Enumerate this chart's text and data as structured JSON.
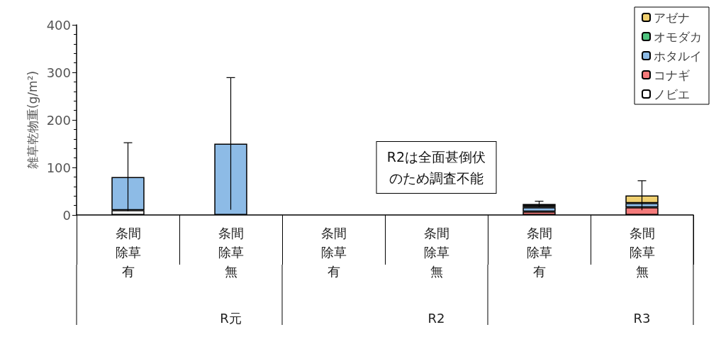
{
  "chart_data": {
    "type": "bar",
    "stacked": true,
    "ylabel": "雑草乾物重(g/m²)",
    "categories": [
      "条間除草有",
      "条間除草無",
      "条間除草有",
      "条間除草無",
      "条間除草有",
      "条間除草無"
    ],
    "series": [
      {
        "name": "ノビエ",
        "color": "#ffffff",
        "values": [
          10,
          null,
          null,
          null,
          null,
          null
        ]
      },
      {
        "name": "コナギ",
        "color": "#f47a7a",
        "values": [
          null,
          null,
          null,
          null,
          7,
          16
        ]
      },
      {
        "name": "ホタルイ",
        "color": "#8dbbe6",
        "values": [
          70,
          150,
          null,
          null,
          9,
          9
        ]
      },
      {
        "name": "オモダカ",
        "color": "#4fc47f",
        "values": [
          null,
          null,
          null,
          null,
          3,
          null
        ]
      },
      {
        "name": "アゼナ",
        "color": "#f0d070",
        "values": [
          0,
          0,
          null,
          null,
          4,
          16
        ],
        "errors": [
          72,
          139,
          null,
          null,
          6,
          31
        ]
      }
    ],
    "ylim": [
      0,
      400
    ],
    "yticks": [
      0,
      100,
      200,
      300,
      400
    ],
    "grid": false,
    "legend": "top right",
    "annotations": [
      "R2は全面甚倒伏のため調査不能",
      "R元",
      "R2",
      "R3"
    ]
  }
}
